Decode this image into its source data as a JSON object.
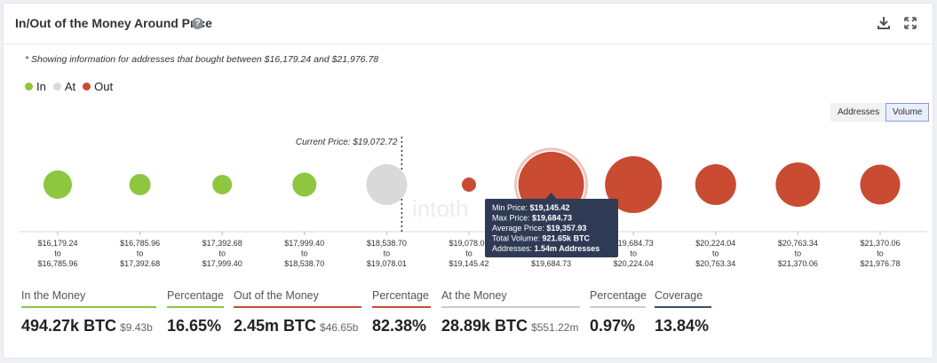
{
  "header": {
    "title": "In/Out of the Money Around Price",
    "help_icon": "question-circle-icon",
    "download_icon": "download-icon",
    "expand_icon": "expand-icon"
  },
  "note": "* Showing information for addresses that bought between $16,179.24 and $21,976.78",
  "legend": [
    {
      "label": "In",
      "color": "#8dc63f"
    },
    {
      "label": "At",
      "color": "#d9d9d9"
    },
    {
      "label": "Out",
      "color": "#c84b32"
    }
  ],
  "toggles": {
    "addresses": "Addresses",
    "volume": "Volume",
    "active": "Volume"
  },
  "watermark": "intoth",
  "chart_data": {
    "type": "bubble",
    "current_price_label": "Current Price: $19,072.72",
    "current_price_position": 4.0,
    "bubbles": [
      {
        "from": "$16,179.24",
        "to": "$16,785.96",
        "status": "In",
        "size": 16
      },
      {
        "from": "$16,785.96",
        "to": "$17,392.68",
        "status": "In",
        "size": 12
      },
      {
        "from": "$17,392.68",
        "to": "$17,999.40",
        "status": "In",
        "size": 11
      },
      {
        "from": "$17,999.40",
        "to": "$18,538.70",
        "status": "In",
        "size": 13.5
      },
      {
        "from": "$18,538.70",
        "to": "$19,078.01",
        "status": "At",
        "size": 23
      },
      {
        "from": "$19,078.01",
        "to": "$19,145.42",
        "status": "Out",
        "size": 8
      },
      {
        "from": "$19,145.42",
        "to": "$19,684.73",
        "status": "Out",
        "size": 37,
        "highlight": true
      },
      {
        "from": "$19,684.73",
        "to": "$20,224.04",
        "status": "Out",
        "size": 32
      },
      {
        "from": "$20,224.04",
        "to": "$20,763.34",
        "status": "Out",
        "size": 23
      },
      {
        "from": "$20,763.34",
        "to": "$21,370.06",
        "status": "Out",
        "size": 25
      },
      {
        "from": "$21,370.06",
        "to": "$21,976.78",
        "status": "Out",
        "size": 22.5
      }
    ],
    "to_label": "to",
    "tooltip": {
      "lines": [
        {
          "label": "Min Price: ",
          "value": "$19,145.42"
        },
        {
          "label": "Max Price: ",
          "value": "$19,684.73"
        },
        {
          "label": "Average Price: ",
          "value": "$19,357.93"
        },
        {
          "label": "Total Volume: ",
          "value": "921.65k BTC"
        },
        {
          "label": "Addresses: ",
          "value": "1.54m Addresses"
        }
      ]
    }
  },
  "stats": [
    {
      "label": "In the Money",
      "value": "494.27k BTC",
      "sub": "$9.43b",
      "color": "#8dc63f"
    },
    {
      "label": "Percentage",
      "value": "16.65%",
      "sub": "",
      "color": "#8dc63f"
    },
    {
      "label": "Out of the Money",
      "value": "2.45m BTC",
      "sub": "$46.65b",
      "color": "#c84b32"
    },
    {
      "label": "Percentage",
      "value": "82.38%",
      "sub": "",
      "color": "#c84b32"
    },
    {
      "label": "At the Money",
      "value": "28.89k BTC",
      "sub": "$551.22m",
      "color": "#cccccc"
    },
    {
      "label": "Percentage",
      "value": "0.97%",
      "sub": "",
      "color": "#cccccc"
    },
    {
      "label": "Coverage",
      "value": "13.84%",
      "sub": "",
      "color": "#3b4a6b"
    }
  ]
}
